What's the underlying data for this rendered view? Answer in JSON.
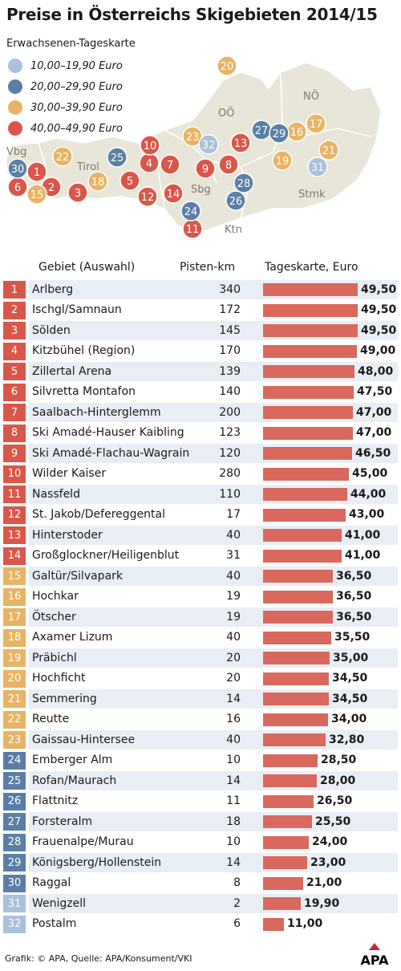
{
  "title": "Preise in Österreichs Skigebieten 2014/15",
  "legend": {
    "title": "Erwachsenen-Tageskarte",
    "items": [
      {
        "label": "10,00–19,90 Euro",
        "color": "#a9c1dc"
      },
      {
        "label": "20,00–29,90 Euro",
        "color": "#5a7fa6"
      },
      {
        "label": "30,00–39,90 Euro",
        "color": "#e7b465"
      },
      {
        "label": "40,00–49,90 Euro",
        "color": "#d9574a"
      }
    ]
  },
  "map": {
    "regions": [
      "Vbg",
      "Tirol",
      "Sbg",
      "OÖ",
      "NÖ",
      "Stmk",
      "Ktn"
    ],
    "markers": [
      "1",
      "2",
      "3",
      "4",
      "5",
      "6",
      "7",
      "8",
      "9",
      "10",
      "11",
      "12",
      "13",
      "14",
      "15",
      "16",
      "17",
      "18",
      "19",
      "20",
      "21",
      "22",
      "23",
      "24",
      "25",
      "26",
      "27",
      "28",
      "29",
      "30",
      "31",
      "32"
    ]
  },
  "table": {
    "headers": {
      "area": "Gebiet (Auswahl)",
      "km": "Pisten-km",
      "price": "Tageskarte, Euro"
    }
  },
  "chart_data": {
    "type": "bar",
    "xlabel": "Tageskarte, Euro",
    "xlim": [
      0,
      49.5
    ],
    "rows": [
      {
        "rank": "1",
        "name": "Arlberg",
        "km": "340",
        "price": 49.5,
        "price_label": "49,50"
      },
      {
        "rank": "2",
        "name": "Ischgl/Samnaun",
        "km": "172",
        "price": 49.5,
        "price_label": "49,50"
      },
      {
        "rank": "3",
        "name": "Sölden",
        "km": "145",
        "price": 49.5,
        "price_label": "49,50"
      },
      {
        "rank": "4",
        "name": "Kitzbühel (Region)",
        "km": "170",
        "price": 49.0,
        "price_label": "49,00"
      },
      {
        "rank": "5",
        "name": "Zillertal Arena",
        "km": "139",
        "price": 48.0,
        "price_label": "48,00"
      },
      {
        "rank": "6",
        "name": "Silvretta Montafon",
        "km": "140",
        "price": 47.5,
        "price_label": "47,50"
      },
      {
        "rank": "7",
        "name": "Saalbach-Hinterglemm",
        "km": "200",
        "price": 47.0,
        "price_label": "47,00"
      },
      {
        "rank": "8",
        "name": "Ski Amadé-Hauser Kaibling",
        "km": "123",
        "price": 47.0,
        "price_label": "47,00"
      },
      {
        "rank": "9",
        "name": "Ski Amadé-Flachau-Wagrain",
        "km": "120",
        "price": 46.5,
        "price_label": "46,50"
      },
      {
        "rank": "10",
        "name": "Wilder Kaiser",
        "km": "280",
        "price": 45.0,
        "price_label": "45,00"
      },
      {
        "rank": "11",
        "name": "Nassfeld",
        "km": "110",
        "price": 44.0,
        "price_label": "44,00"
      },
      {
        "rank": "12",
        "name": "St. Jakob/Defereggental",
        "km": "17",
        "price": 43.0,
        "price_label": "43,00"
      },
      {
        "rank": "13",
        "name": "Hinterstoder",
        "km": "40",
        "price": 41.0,
        "price_label": "41,00"
      },
      {
        "rank": "14",
        "name": "Großglockner/Heiligenblut",
        "km": "31",
        "price": 41.0,
        "price_label": "41,00"
      },
      {
        "rank": "15",
        "name": "Galtür/Silvapark",
        "km": "40",
        "price": 36.5,
        "price_label": "36,50"
      },
      {
        "rank": "16",
        "name": "Hochkar",
        "km": "19",
        "price": 36.5,
        "price_label": "36,50"
      },
      {
        "rank": "17",
        "name": "Ötscher",
        "km": "19",
        "price": 36.5,
        "price_label": "36,50"
      },
      {
        "rank": "18",
        "name": "Axamer Lizum",
        "km": "40",
        "price": 35.5,
        "price_label": "35,50"
      },
      {
        "rank": "19",
        "name": "Präbichl",
        "km": "20",
        "price": 35.0,
        "price_label": "35,00"
      },
      {
        "rank": "20",
        "name": "Hochficht",
        "km": "20",
        "price": 34.5,
        "price_label": "34,50"
      },
      {
        "rank": "21",
        "name": "Semmering",
        "km": "14",
        "price": 34.5,
        "price_label": "34,50"
      },
      {
        "rank": "22",
        "name": "Reutte",
        "km": "16",
        "price": 34.0,
        "price_label": "34,00"
      },
      {
        "rank": "23",
        "name": "Gaissau-Hintersee",
        "km": "40",
        "price": 32.8,
        "price_label": "32,80"
      },
      {
        "rank": "24",
        "name": "Emberger Alm",
        "km": "10",
        "price": 28.5,
        "price_label": "28,50"
      },
      {
        "rank": "25",
        "name": "Rofan/Maurach",
        "km": "14",
        "price": 28.0,
        "price_label": "28,00"
      },
      {
        "rank": "26",
        "name": "Flattnitz",
        "km": "11",
        "price": 26.5,
        "price_label": "26,50"
      },
      {
        "rank": "27",
        "name": "Forsteralm",
        "km": "18",
        "price": 25.5,
        "price_label": "25,50"
      },
      {
        "rank": "28",
        "name": "Frauenalpe/Murau",
        "km": "10",
        "price": 24.0,
        "price_label": "24,00"
      },
      {
        "rank": "29",
        "name": "Königsberg/Hollenstein",
        "km": "14",
        "price": 23.0,
        "price_label": "23,00"
      },
      {
        "rank": "30",
        "name": "Raggal",
        "km": "8",
        "price": 21.0,
        "price_label": "21,00"
      },
      {
        "rank": "31",
        "name": "Wenigzell",
        "km": "2",
        "price": 19.9,
        "price_label": "19,90"
      },
      {
        "rank": "32",
        "name": "Postalm",
        "km": "6",
        "price": 11.0,
        "price_label": "11,00"
      }
    ]
  },
  "footer": {
    "credit": "Grafik: © APA, Quelle: APA/Konsument/VKI",
    "logo": "APA"
  }
}
